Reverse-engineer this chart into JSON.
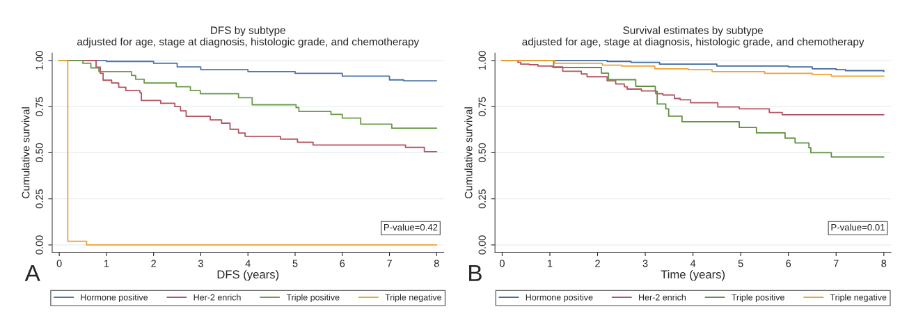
{
  "chart_data": [
    {
      "type": "step",
      "title": "DFS by subtype",
      "subtitle": "adjusted for age, stage at diagnosis, histologic grade, and chemotherapy",
      "xlabel": "DFS (years)",
      "ylabel": "Cumulative survival",
      "annotations": [
        "P-value=0.42",
        "A"
      ],
      "xlim": [
        -0.15,
        8.15
      ],
      "xticks": [
        0,
        1,
        2,
        3,
        4,
        5,
        6,
        7,
        8
      ],
      "ylim": [
        -0.04,
        1.04
      ],
      "yticks": [
        {
          "value": 0,
          "label": "0.00"
        },
        {
          "value": 0.25,
          "label": "0.25"
        },
        {
          "value": 0.5,
          "label": "0.50"
        },
        {
          "value": 0.75,
          "label": "0.75"
        },
        {
          "value": 1,
          "label": "1.00"
        }
      ],
      "grid": "y",
      "legend": "bottom",
      "series": [
        {
          "name": "Hormone positive",
          "color": "#4a72a8",
          "x": [
            0,
            0.6,
            1,
            2,
            2.5,
            3,
            4,
            5,
            6,
            7,
            7.3,
            8
          ],
          "values": [
            1.0,
            1.0,
            0.995,
            0.985,
            0.965,
            0.95,
            0.94,
            0.93,
            0.915,
            0.895,
            0.89,
            0.89
          ]
        },
        {
          "name": "Her-2 enrich",
          "color": "#b5525f",
          "x": [
            0,
            0.6,
            0.78,
            0.87,
            0.93,
            1.11,
            1.26,
            1.41,
            1.71,
            1.74,
            2.15,
            2.45,
            2.57,
            2.69,
            3.2,
            3.44,
            3.62,
            3.8,
            3.94,
            4.69,
            5.05,
            5.38,
            7.34,
            7.74,
            8
          ],
          "values": [
            1.0,
            1.0,
            0.964,
            0.93,
            0.893,
            0.878,
            0.855,
            0.837,
            0.825,
            0.783,
            0.768,
            0.75,
            0.727,
            0.697,
            0.678,
            0.66,
            0.627,
            0.607,
            0.589,
            0.574,
            0.557,
            0.542,
            0.529,
            0.506,
            0.506
          ]
        },
        {
          "name": "Triple positive",
          "color": "#6a9a4a",
          "x": [
            0,
            0.5,
            0.67,
            0.84,
            1.53,
            1.62,
            1.8,
            2.48,
            2.78,
            2.99,
            3.8,
            4.09,
            5.02,
            5.08,
            5.76,
            6.0,
            6.39,
            7.05,
            8
          ],
          "values": [
            1.0,
            0.985,
            0.96,
            0.94,
            0.919,
            0.898,
            0.878,
            0.858,
            0.837,
            0.82,
            0.798,
            0.76,
            0.745,
            0.724,
            0.708,
            0.688,
            0.655,
            0.633,
            0.633
          ]
        },
        {
          "name": "Triple negative",
          "color": "#f0a030",
          "x": [
            0,
            0.18,
            0.58,
            8
          ],
          "values": [
            1.0,
            0.02,
            0.0,
            0.0
          ]
        }
      ]
    },
    {
      "type": "step",
      "title": "Survival estimates by subtype",
      "subtitle": "adjusted for age, stage at diagnosis, histologic grade, and chemotherapy",
      "xlabel": "Time (years)",
      "ylabel": "Cumulative survival",
      "annotations": [
        "P-value=0.01",
        "B"
      ],
      "xlim": [
        -0.15,
        8.15
      ],
      "xticks": [
        0,
        1,
        2,
        3,
        4,
        5,
        6,
        7,
        8
      ],
      "ylim": [
        -0.04,
        1.04
      ],
      "yticks": [
        {
          "value": 0,
          "label": "0.00"
        },
        {
          "value": 0.25,
          "label": "0.25"
        },
        {
          "value": 0.5,
          "label": "0.50"
        },
        {
          "value": 0.75,
          "label": "0.75"
        },
        {
          "value": 1,
          "label": "1.00"
        }
      ],
      "grid": "y",
      "legend": "bottom",
      "series": [
        {
          "name": "Hormone positive",
          "color": "#3f6a9e",
          "x": [
            0,
            1.2,
            2.2,
            2.7,
            3.3,
            4.5,
            6,
            6.5,
            7,
            7.2,
            8
          ],
          "values": [
            1.0,
            1.0,
            0.995,
            0.99,
            0.98,
            0.97,
            0.965,
            0.955,
            0.95,
            0.945,
            0.94
          ]
        },
        {
          "name": "Her-2 enrich",
          "color": "#b5525f",
          "x": [
            0,
            0.33,
            0.39,
            0.57,
            0.75,
            1.05,
            1.27,
            1.66,
            1.78,
            2.2,
            2.38,
            2.56,
            2.62,
            2.92,
            3.22,
            3.37,
            3.61,
            3.73,
            3.95,
            4.52,
            4.97,
            5.6,
            5.87,
            8
          ],
          "values": [
            1.0,
            0.99,
            0.98,
            0.977,
            0.97,
            0.965,
            0.942,
            0.927,
            0.912,
            0.89,
            0.873,
            0.858,
            0.845,
            0.835,
            0.82,
            0.813,
            0.794,
            0.787,
            0.771,
            0.748,
            0.738,
            0.718,
            0.706,
            0.706
          ]
        },
        {
          "name": "Triple positive",
          "color": "#5f9040",
          "x": [
            0,
            1.08,
            2.08,
            2.23,
            2.8,
            3.21,
            3.25,
            3.43,
            3.49,
            3.77,
            4.97,
            5.33,
            5.93,
            6.14,
            6.43,
            6.47,
            6.9,
            8
          ],
          "values": [
            1.0,
            0.962,
            0.931,
            0.896,
            0.86,
            0.832,
            0.764,
            0.738,
            0.698,
            0.668,
            0.637,
            0.608,
            0.579,
            0.553,
            0.527,
            0.5,
            0.477,
            0.477
          ]
        },
        {
          "name": "Triple negative",
          "color": "#f0a030",
          "x": [
            0,
            1.0,
            1.1,
            2.1,
            2.5,
            3.2,
            3.9,
            4.4,
            5.5,
            6.5,
            6.9,
            8
          ],
          "values": [
            1.0,
            1.0,
            0.985,
            0.975,
            0.97,
            0.955,
            0.95,
            0.94,
            0.93,
            0.925,
            0.915,
            0.915
          ]
        }
      ]
    }
  ]
}
